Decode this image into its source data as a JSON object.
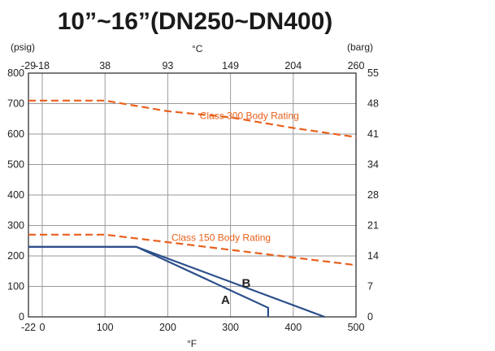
{
  "chart_data": {
    "type": "line",
    "title": "10”~16”(DN250~DN400)",
    "units": {
      "left": "(psig)",
      "right": "(barg)",
      "top": "°C",
      "bottom": "°F"
    },
    "x_f": {
      "range": [
        -22,
        500
      ],
      "ticks": [
        -22,
        0,
        100,
        200,
        300,
        400,
        500
      ]
    },
    "x_c": {
      "ticks": [
        -29,
        -18,
        38,
        93,
        149,
        204,
        260
      ]
    },
    "y_psig": {
      "range": [
        0,
        800
      ],
      "ticks": [
        0,
        100,
        200,
        300,
        400,
        500,
        600,
        700,
        800
      ]
    },
    "y_barg": {
      "ticks": [
        0,
        7,
        14,
        21,
        28,
        34,
        41,
        48,
        55
      ]
    },
    "grid": true,
    "rating_lines": [
      {
        "name": "Class 300 Body Rating",
        "color": "#e8601c",
        "points": [
          [
            -22,
            710
          ],
          [
            100,
            710
          ],
          [
            200,
            675
          ],
          [
            300,
            655
          ],
          [
            400,
            620
          ],
          [
            500,
            590
          ]
        ]
      },
      {
        "name": "Class 150 Body Rating",
        "color": "#e8601c",
        "points": [
          [
            -22,
            270
          ],
          [
            100,
            270
          ],
          [
            200,
            245
          ],
          [
            300,
            220
          ],
          [
            400,
            195
          ],
          [
            500,
            170
          ]
        ]
      }
    ],
    "curves": [
      {
        "name": "A",
        "color": "#2b4f8a",
        "points": [
          [
            -22,
            230
          ],
          [
            150,
            230
          ],
          [
            360,
            30
          ],
          [
            360,
            0
          ]
        ]
      },
      {
        "name": "B",
        "color": "#2b4f8a",
        "points": [
          [
            -22,
            230
          ],
          [
            150,
            230
          ],
          [
            450,
            0
          ]
        ]
      }
    ]
  }
}
